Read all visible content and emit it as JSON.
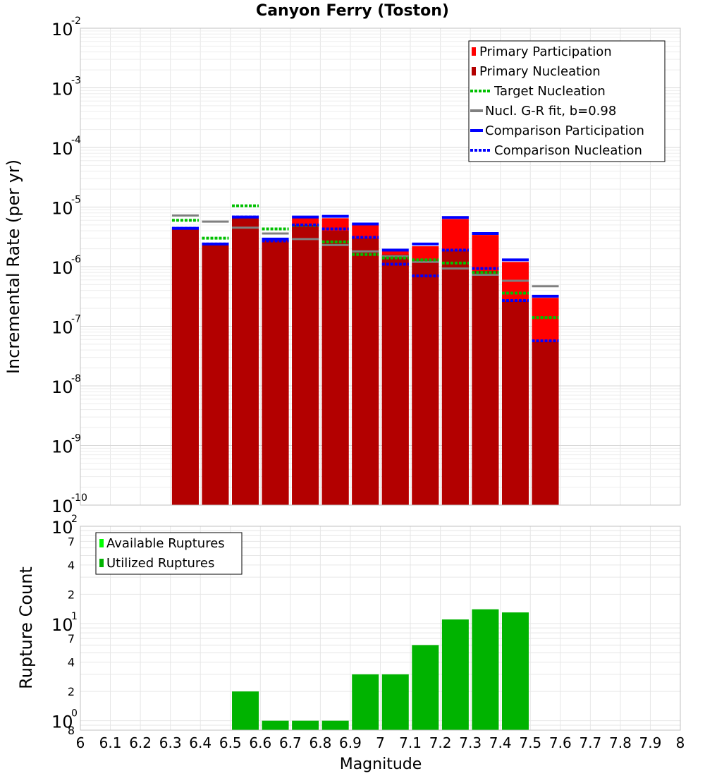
{
  "chart_data": [
    {
      "type": "bar",
      "title": "Canyon Ferry (Toston)",
      "ylabel": "Incremental Rate (per yr)",
      "yscale": "log",
      "ylim": [
        1e-10,
        0.01
      ],
      "xlim": [
        6,
        8
      ],
      "major_ticks": [
        {
          "base": "10",
          "exp": "-10",
          "value": 1e-10
        },
        {
          "base": "10",
          "exp": "-9",
          "value": 1e-09
        },
        {
          "base": "10",
          "exp": "-8",
          "value": 1e-08
        },
        {
          "base": "10",
          "exp": "-7",
          "value": 1e-07
        },
        {
          "base": "10",
          "exp": "-6",
          "value": 1e-06
        },
        {
          "base": "10",
          "exp": "-5",
          "value": 1e-05
        },
        {
          "base": "10",
          "exp": "-4",
          "value": 0.0001
        },
        {
          "base": "10",
          "exp": "-3",
          "value": 0.001
        },
        {
          "base": "10",
          "exp": "-2",
          "value": 0.01
        }
      ],
      "grid": true,
      "legend_position": "top-right",
      "colors": {
        "primary_participation": "#ff0000",
        "primary_nucleation": "#b30000",
        "target_nucleation": "#00c000",
        "gr_fit": "#808080",
        "comparison": "#0000ff"
      },
      "legend": [
        {
          "label": "Primary Participation",
          "style": "bar",
          "color": "#ff0000"
        },
        {
          "label": "Primary Nucleation",
          "style": "bar",
          "color": "#b30000"
        },
        {
          "label": "Target Nucleation",
          "style": "dotted",
          "color": "#00c000"
        },
        {
          "label": "Nucl. G-R fit, b=0.98",
          "style": "solid",
          "color": "#808080"
        },
        {
          "label": "Comparison Participation",
          "style": "solid",
          "color": "#0000ff"
        },
        {
          "label": "Comparison Nucleation",
          "style": "dotted",
          "color": "#0000ff"
        }
      ],
      "x": [
        6.35,
        6.45,
        6.55,
        6.65,
        6.75,
        6.85,
        6.95,
        7.05,
        7.15,
        7.25,
        7.35,
        7.45,
        7.55
      ],
      "series": [
        {
          "name": "Primary Participation",
          "values": [
            4.3e-06,
            2.3e-06,
            6.6e-06,
            2.8e-06,
            6.5e-06,
            6.5e-06,
            5e-06,
            1.8e-06,
            2.2e-06,
            6.3e-06,
            3.4e-06,
            1.2e-06,
            3e-07
          ]
        },
        {
          "name": "Primary Nucleation",
          "values": [
            4.3e-06,
            2.3e-06,
            6.6e-06,
            2.8e-06,
            5e-06,
            4e-06,
            3e-06,
            1.6e-06,
            1.3e-06,
            1.9e-06,
            8.5e-07,
            2.7e-07,
            5.5e-08
          ]
        },
        {
          "name": "Target Nucleation",
          "values": [
            6e-06,
            3e-06,
            1.05e-05,
            4.3e-06,
            4.9e-06,
            2.6e-06,
            1.6e-06,
            1.4e-06,
            1.3e-06,
            1.15e-06,
            8e-07,
            3.6e-07,
            1.4e-07
          ]
        },
        {
          "name": "Nucl. G-R fit, b=0.98",
          "values": [
            7.2e-06,
            5.7e-06,
            4.5e-06,
            3.6e-06,
            2.9e-06,
            2.3e-06,
            1.8e-06,
            1.5e-06,
            1.2e-06,
            9.3e-07,
            7.3e-07,
            5.8e-07,
            4.7e-07
          ]
        },
        {
          "name": "Comparison Participation",
          "values": [
            4.4e-06,
            2.4e-06,
            6.8e-06,
            2.9e-06,
            6.8e-06,
            7e-06,
            5.2e-06,
            1.9e-06,
            2.4e-06,
            6.7e-06,
            3.6e-06,
            1.3e-06,
            3.2e-07
          ]
        },
        {
          "name": "Comparison Nucleation",
          "values": [
            4.4e-06,
            2.4e-06,
            6.8e-06,
            2.7e-06,
            5e-06,
            4.3e-06,
            3.1e-06,
            1.1e-06,
            7e-07,
            1.9e-06,
            9.3e-07,
            2.7e-07,
            5.7e-08
          ]
        }
      ]
    },
    {
      "type": "bar",
      "xlabel": "Magnitude",
      "ylabel": "Rupture Count",
      "yscale": "log",
      "ylim": [
        0.8,
        100
      ],
      "xlim": [
        6,
        8
      ],
      "x_ticks": [
        "6",
        "6.1",
        "6.2",
        "6.3",
        "6.4",
        "6.5",
        "6.6",
        "6.7",
        "6.8",
        "6.9",
        "7",
        "7.1",
        "7.2",
        "7.3",
        "7.4",
        "7.5",
        "7.6",
        "7.7",
        "7.8",
        "7.9",
        "8"
      ],
      "major_ticks": [
        {
          "base": "10",
          "exp": "0",
          "value": 1
        },
        {
          "base": "10",
          "exp": "1",
          "value": 10
        },
        {
          "base": "10",
          "exp": "2",
          "value": 100
        }
      ],
      "minor_ticks": [
        {
          "label": "8",
          "value": 0.8
        },
        {
          "label": "2",
          "value": 2
        },
        {
          "label": "4",
          "value": 4
        },
        {
          "label": "7",
          "value": 7
        },
        {
          "label": "2",
          "value": 20
        },
        {
          "label": "4",
          "value": 40
        },
        {
          "label": "7",
          "value": 70
        }
      ],
      "grid": true,
      "legend_position": "top-left",
      "legend": [
        {
          "label": "Available Ruptures",
          "color": "#00ff00"
        },
        {
          "label": "Utilized Ruptures",
          "color": "#00b300"
        }
      ],
      "x": [
        6.55,
        6.65,
        6.75,
        6.85,
        6.95,
        7.05,
        7.15,
        7.25,
        7.35,
        7.45
      ],
      "series": [
        {
          "name": "Utilized Ruptures",
          "values": [
            2,
            1,
            1,
            1,
            3,
            3,
            6,
            11,
            14,
            13
          ]
        }
      ]
    }
  ]
}
